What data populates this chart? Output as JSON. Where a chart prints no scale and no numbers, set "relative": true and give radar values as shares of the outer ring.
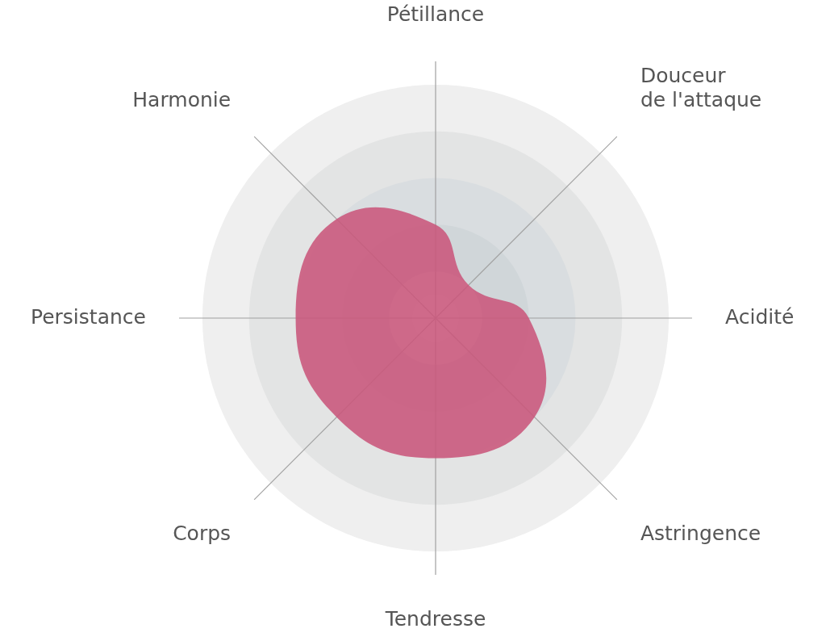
{
  "chart_data": {
    "type": "radar",
    "relative": true,
    "grid": true,
    "legend": false,
    "marker": "none",
    "categories": [
      "Pétillance",
      "Douceur de l'attaque",
      "Acidité",
      "Astringence",
      "Tendresse",
      "Corps",
      "Persistance",
      "Harmonie"
    ],
    "series": [
      {
        "color": "#c9577b",
        "values": [
          0.4,
          0.2,
          0.4,
          0.6,
          0.6,
          0.6,
          0.6,
          0.6
        ]
      }
    ]
  }
}
